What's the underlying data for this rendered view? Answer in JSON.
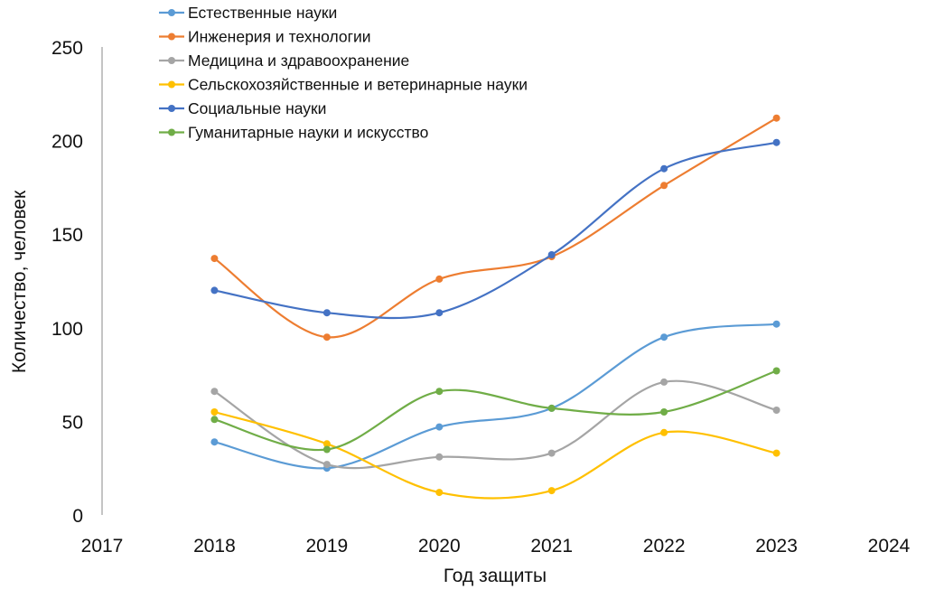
{
  "chart_data": {
    "type": "line",
    "smooth": true,
    "title": "",
    "xlabel": "Год защиты",
    "ylabel": "Количество, человек",
    "xlim": [
      2017,
      2024
    ],
    "ylim": [
      0,
      250
    ],
    "x_ticks": [
      "2017",
      "2018",
      "2019",
      "2020",
      "2021",
      "2022",
      "2023",
      "2024"
    ],
    "y_ticks": [
      "0",
      "50",
      "100",
      "150",
      "200",
      "250"
    ],
    "grid": false,
    "legend_position": "top",
    "x": [
      2018,
      2019,
      2020,
      2021,
      2022,
      2023
    ],
    "series": [
      {
        "name": "Естественные науки",
        "color": "#5B9BD5",
        "values": [
          39,
          25,
          47,
          57,
          95,
          102
        ]
      },
      {
        "name": "Инженерия и технологии",
        "color": "#ED7D31",
        "values": [
          137,
          95,
          126,
          138,
          176,
          212
        ]
      },
      {
        "name": "Медицина и здравоохранение",
        "color": "#A5A5A5",
        "values": [
          66,
          27,
          31,
          33,
          71,
          56
        ]
      },
      {
        "name": "Сельскохозяйственные и ветеринарные науки",
        "color": "#FFC000",
        "values": [
          55,
          38,
          12,
          13,
          44,
          33
        ]
      },
      {
        "name": "Социальные науки",
        "color": "#4472C4",
        "values": [
          120,
          108,
          108,
          139,
          185,
          199
        ]
      },
      {
        "name": "Гуманитарные науки и искусство",
        "color": "#70AD47",
        "values": [
          51,
          35,
          66,
          57,
          55,
          77
        ]
      }
    ]
  }
}
